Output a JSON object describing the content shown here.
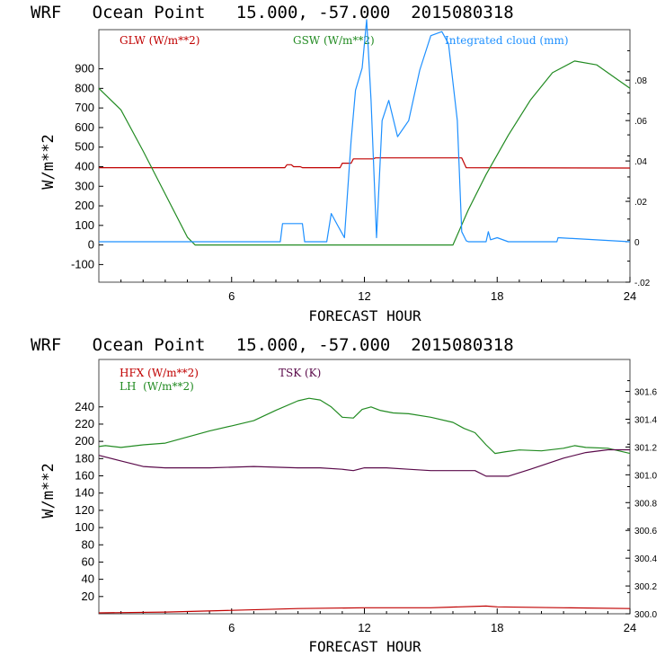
{
  "chart_data": [
    {
      "type": "line",
      "title": "WRF   Ocean Point   15.000, -57.000  2015080318",
      "xlabel": "FORECAST HOUR",
      "ylabel": "W/m**2",
      "xlim": [
        0,
        24
      ],
      "ylim": [
        -190,
        1100
      ],
      "x_ticks": [
        "6",
        "12",
        "18",
        "24"
      ],
      "y_ticks": [
        "900",
        "800",
        "700",
        "600",
        "500",
        "400",
        "300",
        "200",
        "100",
        "0",
        "-100"
      ],
      "y2lim": [
        -0.02,
        0.105
      ],
      "y2_ticks": [
        ".08",
        ".06",
        ".04",
        ".02",
        "0",
        "-.02"
      ],
      "series": [
        {
          "name": "GLW (W/m**2)",
          "axis": "left",
          "color": "#c00000",
          "x": [
            0,
            8.4,
            8.5,
            8.7,
            8.8,
            9.1,
            9.2,
            10.9,
            11.0,
            11.4,
            11.5,
            12.4,
            12.5,
            16.4,
            16.6,
            24
          ],
          "y": [
            395,
            395,
            410,
            410,
            400,
            400,
            395,
            395,
            418,
            418,
            440,
            440,
            445,
            445,
            395,
            393
          ]
        },
        {
          "name": "GSW (W/m**2)",
          "axis": "left",
          "color": "#228b22",
          "x": [
            0,
            1,
            2,
            3,
            4,
            4.35,
            16.0,
            16.7,
            17.5,
            18.5,
            19.5,
            20.5,
            21.5,
            22.5,
            23.5,
            24
          ],
          "y": [
            800,
            690,
            480,
            260,
            40,
            0,
            0,
            180,
            360,
            560,
            740,
            880,
            940,
            920,
            840,
            800
          ]
        },
        {
          "name": "Integrated cloud (mm)",
          "axis": "right",
          "color": "#1e90ff",
          "x": [
            0,
            8.2,
            8.3,
            9.2,
            9.3,
            10.3,
            10.5,
            10.8,
            11.1,
            11.4,
            11.6,
            11.9,
            12.1,
            12.3,
            12.55,
            12.8,
            13.1,
            13.5,
            14.0,
            14.5,
            15.0,
            15.5,
            15.8,
            16.2,
            16.4,
            16.6,
            16.7,
            17.5,
            17.6,
            17.7,
            18.0,
            18.5,
            20.7,
            20.75,
            24
          ],
          "y": [
            0,
            0,
            0.009,
            0.009,
            0,
            0,
            0.014,
            0.008,
            0.002,
            0.05,
            0.075,
            0.086,
            0.11,
            0.07,
            0.002,
            0.06,
            0.07,
            0.052,
            0.06,
            0.085,
            0.102,
            0.104,
            0.098,
            0.06,
            0.005,
            0.0005,
            0,
            0,
            0.005,
            0.001,
            0.002,
            0,
            0,
            0.002,
            0
          ]
        }
      ],
      "legend": "top"
    },
    {
      "type": "line",
      "title": "WRF   Ocean Point   15.000, -57.000  2015080318",
      "xlabel": "FORECAST HOUR",
      "ylabel": "W/m**2",
      "xlim": [
        0,
        24
      ],
      "ylim": [
        0,
        295
      ],
      "x_ticks": [
        "6",
        "12",
        "18",
        "24"
      ],
      "y_ticks": [
        "240",
        "220",
        "200",
        "180",
        "160",
        "140",
        "120",
        "100",
        "80",
        "60",
        "40",
        "20"
      ],
      "y2lim": [
        300.0,
        301.83
      ],
      "y2_ticks": [
        "301.6",
        "301.4",
        "301.2",
        "301.0",
        "300.8",
        "300.6",
        "300.4",
        "300.2",
        "300.0"
      ],
      "series": [
        {
          "name": "HFX (W/m**2)",
          "axis": "left",
          "color": "#c00000",
          "x": [
            0,
            3,
            6,
            9,
            12,
            15,
            17.5,
            18,
            21,
            24
          ],
          "y": [
            1,
            2,
            4,
            6,
            7,
            7,
            9,
            8,
            7,
            6
          ]
        },
        {
          "name": "LH  (W/m**2)",
          "axis": "left",
          "color": "#228b22",
          "x": [
            0,
            0.3,
            1,
            2,
            3,
            4,
            5,
            6,
            7,
            8,
            9,
            9.5,
            10,
            10.5,
            11,
            11.5,
            11.9,
            12.3,
            12.7,
            13.3,
            14,
            15,
            16,
            16.5,
            17,
            17.5,
            17.9,
            18.4,
            19,
            20,
            21,
            21.5,
            22,
            23,
            24
          ],
          "y": [
            194,
            195,
            193,
            196,
            198,
            205,
            212,
            218,
            224,
            236,
            247,
            250,
            248,
            240,
            228,
            227,
            237,
            240,
            236,
            233,
            232,
            228,
            222,
            215,
            210,
            196,
            186,
            188,
            190,
            189,
            192,
            195,
            193,
            192,
            186
          ]
        },
        {
          "name": "TSK (K)",
          "axis": "right",
          "color": "#5a0a4a",
          "x": [
            0,
            1,
            2,
            3,
            5,
            7,
            9,
            10,
            11,
            11.5,
            12,
            13,
            14,
            15,
            16,
            17,
            17.5,
            18.5,
            19.5,
            21,
            22,
            23,
            24
          ],
          "y": [
            301.14,
            301.1,
            301.06,
            301.05,
            301.05,
            301.06,
            301.05,
            301.05,
            301.04,
            301.03,
            301.05,
            301.05,
            301.04,
            301.03,
            301.03,
            301.03,
            300.99,
            300.99,
            301.04,
            301.12,
            301.16,
            301.18,
            301.18
          ]
        }
      ],
      "legend": "top"
    }
  ]
}
